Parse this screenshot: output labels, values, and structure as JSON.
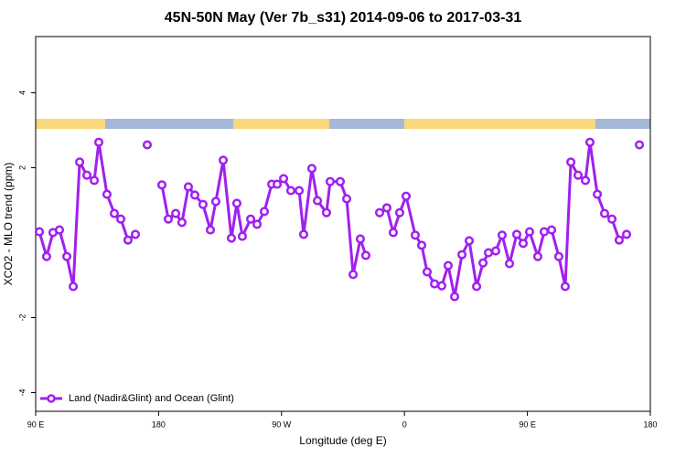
{
  "chart_data": {
    "type": "line",
    "title": "45N-50N May (Ver 7b_s31)   2014-09-06 to 2017-03-31",
    "x_label": "Longitude (deg E)",
    "y_label": "XCO2 - MLO trend (ppm)",
    "xlim": [
      90,
      540
    ],
    "ylim": [
      -4.5,
      5.5
    ],
    "xticks": [
      {
        "value": 90,
        "label": "90 E"
      },
      {
        "value": 180,
        "label": "180"
      },
      {
        "value": 270,
        "label": "90 W"
      },
      {
        "value": 360,
        "label": "0"
      },
      {
        "value": 450,
        "label": "90 E"
      },
      {
        "value": 540,
        "label": "180"
      }
    ],
    "yticks": [
      -4,
      -2,
      2,
      4
    ],
    "legend_position": "bottom-left",
    "series": [
      {
        "name": "Land (Nadir&Glint) and Ocean (Glint)",
        "color": "#a020f0",
        "x": [
          92.7,
          98.0,
          102.7,
          107.4,
          112.8,
          117.5,
          122.2,
          127.5,
          132.9,
          136.2,
          142.2,
          147.6,
          152.3,
          157.6,
          163.0,
          null,
          171.7,
          null,
          182.4,
          187.1,
          192.5,
          197.1,
          201.8,
          206.5,
          212.5,
          217.9,
          221.9,
          227.3,
          233.3,
          237.3,
          241.3,
          247.4,
          252.1,
          257.4,
          262.8,
          266.8,
          271.5,
          276.8,
          282.9,
          286.2,
          292.2,
          296.3,
          302.9,
          305.6,
          313.0,
          317.7,
          322.4,
          327.7,
          331.7,
          null,
          341.8,
          347.1,
          351.8,
          356.5,
          361.2,
          367.9,
          372.6,
          376.6,
          382.0,
          387.3,
          392.0,
          396.7,
          402.1,
          407.4,
          412.8,
          417.5,
          421.5,
          426.8,
          431.5,
          436.9,
          442.2,
          446.9,
          451.6,
          457.6,
          462.3,
          467.7,
          473.0,
          477.7,
          481.8,
          487.1,
          492.5,
          495.8,
          501.2,
          506.5,
          511.9,
          517.2,
          522.6,
          null,
          532.0
        ],
        "values": [
          0.29,
          -0.37,
          0.27,
          0.34,
          -0.37,
          -1.17,
          2.15,
          1.8,
          1.66,
          2.68,
          1.29,
          0.78,
          0.63,
          0.07,
          0.22,
          null,
          2.61,
          null,
          1.54,
          0.63,
          0.78,
          0.54,
          1.49,
          1.27,
          1.02,
          0.34,
          1.1,
          2.2,
          0.12,
          1.05,
          0.17,
          0.63,
          0.49,
          0.83,
          1.56,
          1.56,
          1.71,
          1.39,
          1.39,
          0.22,
          1.98,
          1.12,
          0.8,
          1.63,
          1.63,
          1.17,
          -0.85,
          0.1,
          -0.34,
          null,
          0.8,
          0.93,
          0.27,
          0.8,
          1.24,
          0.2,
          -0.07,
          -0.78,
          -1.1,
          -1.15,
          -0.61,
          -1.44,
          -0.32,
          0.05,
          -1.17,
          -0.54,
          -0.27,
          -0.22,
          0.2,
          -0.56,
          0.22,
          -0.02,
          0.29,
          -0.37,
          0.29,
          0.34,
          -0.37,
          -1.17,
          2.15,
          1.8,
          1.66,
          2.68,
          1.29,
          0.78,
          0.63,
          0.07,
          0.22,
          null,
          2.61
        ]
      }
    ]
  }
}
